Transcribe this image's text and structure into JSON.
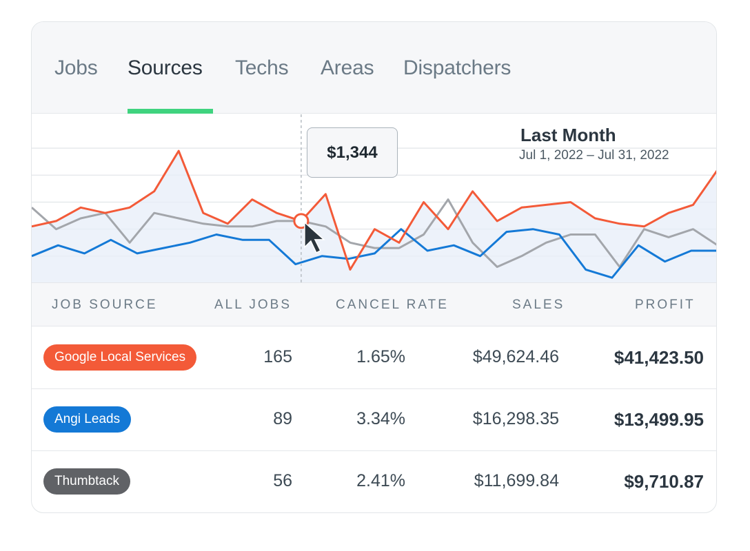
{
  "tabs": [
    {
      "label": "Jobs",
      "active": false
    },
    {
      "label": "Sources",
      "active": true
    },
    {
      "label": "Techs",
      "active": false
    },
    {
      "label": "Areas",
      "active": false
    },
    {
      "label": "Dispatchers",
      "active": false
    }
  ],
  "tooltip": {
    "value": "$1,344"
  },
  "period": {
    "title": "Last Month",
    "dates": "Jul 1, 2022 – Jul 31, 2022"
  },
  "table": {
    "headers": [
      "JOB SOURCE",
      "ALL JOBS",
      "CANCEL RATE",
      "SALES",
      "PROFIT"
    ],
    "rows": [
      {
        "source": "Google Local Services",
        "color": "#f35a38",
        "all_jobs": "165",
        "cancel_rate": "1.65%",
        "sales": "$49,624.46",
        "profit": "$41,423.50"
      },
      {
        "source": "Angi Leads",
        "color": "#1479d6",
        "all_jobs": "89",
        "cancel_rate": "3.34%",
        "sales": "$16,298.35",
        "profit": "$13,499.95"
      },
      {
        "source": "Thumbtack",
        "color": "#606266",
        "all_jobs": "56",
        "cancel_rate": "2.41%",
        "sales": "$11,699.84",
        "profit": "$9,710.87"
      }
    ]
  },
  "colors": {
    "accent_tab": "#3fd37f",
    "series_orange": "#f35a38",
    "series_blue": "#1479d6",
    "series_gray": "#a3a6ab",
    "area_fill": "#e7edf8"
  },
  "chart_data": {
    "type": "line",
    "title": "",
    "xlabel": "",
    "ylabel": "",
    "ylim": [
      0,
      6
    ],
    "grid": true,
    "highlight_index": 11,
    "series": [
      {
        "color": "#f35a38",
        "values": [
          2.1,
          2.3,
          2.8,
          2.6,
          2.8,
          3.4,
          4.9,
          2.6,
          2.2,
          3.1,
          2.6,
          2.3,
          3.3,
          0.5,
          2.0,
          1.5,
          3.0,
          2.0,
          3.4,
          2.3,
          2.8,
          2.9,
          3.0,
          2.4,
          2.2,
          2.1,
          2.6,
          2.9,
          4.2
        ]
      },
      {
        "color": "#1479d6",
        "values": [
          1.0,
          1.4,
          1.1,
          1.6,
          1.1,
          1.3,
          1.5,
          1.8,
          1.6,
          1.6,
          0.7,
          1.0,
          0.9,
          1.1,
          2.0,
          1.2,
          1.4,
          1.0,
          1.9,
          2.0,
          1.8,
          0.5,
          0.2,
          1.4,
          0.8,
          1.2,
          1.2
        ]
      },
      {
        "color": "#a3a6ab",
        "values": [
          2.8,
          2.0,
          2.4,
          2.6,
          1.5,
          2.6,
          2.4,
          2.2,
          2.1,
          2.1,
          2.3,
          2.3,
          2.1,
          1.5,
          1.3,
          1.3,
          1.8,
          3.1,
          1.5,
          0.6,
          1.0,
          1.5,
          1.8,
          1.8,
          0.6,
          2.0,
          1.7,
          2.0,
          1.4
        ]
      }
    ]
  }
}
